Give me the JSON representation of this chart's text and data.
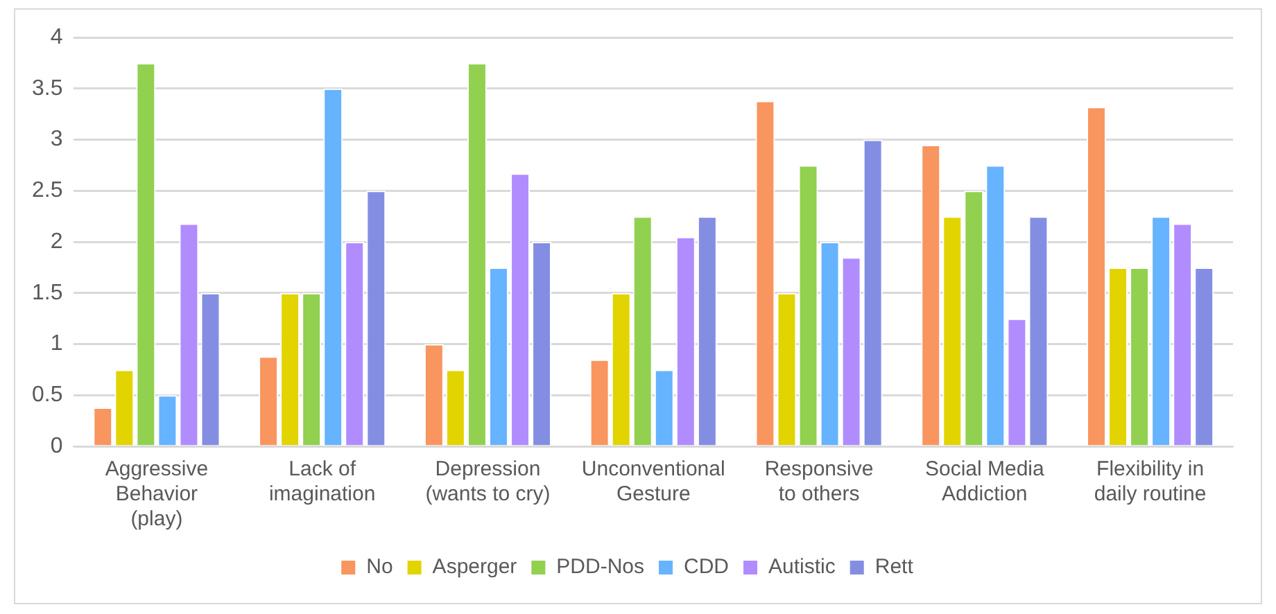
{
  "chart_data": {
    "type": "bar",
    "categories": [
      "Aggressive Behavior (play)",
      "Lack of imagination",
      "Depression (wants to cry)",
      "Unconventional Gesture",
      "Responsive to others",
      "Social Media Addiction",
      "Flexibility in daily routine"
    ],
    "series": [
      {
        "name": "No",
        "color": "#f9955f",
        "values": [
          0.38,
          0.88,
          1.0,
          0.85,
          3.38,
          2.95,
          3.32
        ]
      },
      {
        "name": "Asperger",
        "color": "#e2d400",
        "values": [
          0.75,
          1.5,
          0.75,
          1.5,
          1.5,
          2.25,
          1.75
        ]
      },
      {
        "name": "PDD-Nos",
        "color": "#92d050",
        "values": [
          3.75,
          1.5,
          3.75,
          2.25,
          2.75,
          2.5,
          1.75
        ]
      },
      {
        "name": "CDD",
        "color": "#66b3ff",
        "values": [
          0.5,
          3.5,
          1.75,
          0.75,
          2.0,
          2.75,
          2.25
        ]
      },
      {
        "name": "Autistic",
        "color": "#b18cff",
        "values": [
          2.18,
          2.0,
          2.67,
          2.05,
          1.85,
          1.25,
          2.18
        ]
      },
      {
        "name": "Rett",
        "color": "#838ee3",
        "values": [
          1.5,
          2.5,
          2.0,
          2.25,
          3.0,
          2.25,
          1.75
        ]
      }
    ],
    "ylim": [
      0,
      4
    ],
    "yticks": [
      0,
      0.5,
      1,
      1.5,
      2,
      2.5,
      3,
      3.5,
      4
    ],
    "grid": "y",
    "legend": "bottom"
  }
}
